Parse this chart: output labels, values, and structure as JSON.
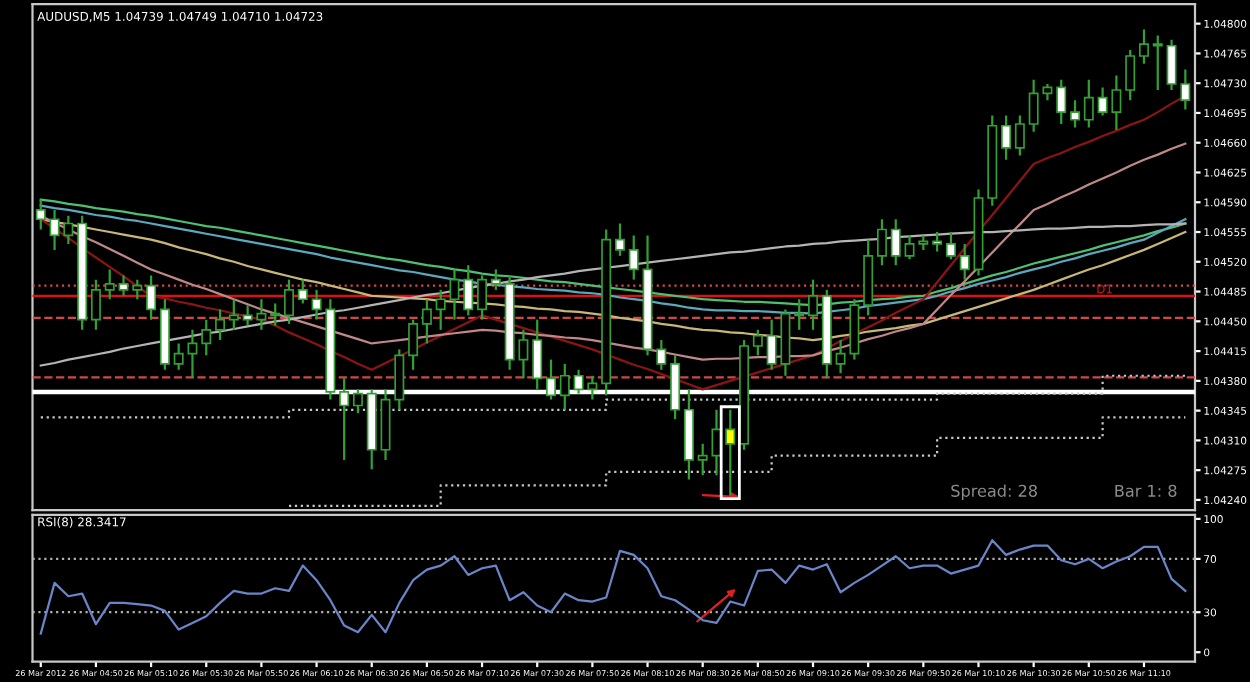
{
  "chart_data": [
    {
      "type": "candlestick",
      "title": "AUDUSD,M5 1.04739 1.04749 1.04710 1.04723",
      "categories": [
        null,
        null,
        null,
        null,
        null,
        null,
        null,
        null,
        null,
        null,
        null,
        null,
        null,
        null,
        null,
        null,
        null,
        null,
        null,
        null,
        null,
        null,
        null,
        null,
        null,
        null,
        null,
        null,
        null,
        null,
        null,
        null,
        null,
        null,
        null,
        null,
        null,
        null,
        null,
        null,
        null,
        null,
        null,
        null,
        null,
        null,
        null,
        null,
        null,
        null,
        null,
        null,
        null,
        null,
        null,
        null,
        null,
        null,
        null,
        null,
        null,
        null,
        null,
        null,
        null,
        null,
        null,
        null,
        null,
        null,
        null,
        null,
        null,
        null,
        null,
        null,
        null,
        null,
        null,
        null,
        null,
        null,
        null,
        null
      ],
      "ohlc": [
        [
          1.04581,
          1.04593,
          1.04558,
          1.0457
        ],
        [
          1.0457,
          1.04581,
          1.04534,
          1.04551
        ],
        [
          1.04551,
          1.04574,
          1.04541,
          1.04565
        ],
        [
          1.04565,
          1.04574,
          1.0444,
          1.04452
        ],
        [
          1.04452,
          1.04499,
          1.0444,
          1.04487
        ],
        [
          1.04487,
          1.04511,
          1.04476,
          1.04494
        ],
        [
          1.04494,
          1.04504,
          1.0448,
          1.04487
        ],
        [
          1.04487,
          1.04499,
          1.04476,
          1.04492
        ],
        [
          1.04492,
          1.04504,
          1.04452,
          1.04464
        ],
        [
          1.04464,
          1.04476,
          1.04393,
          1.044
        ],
        [
          1.044,
          1.04424,
          1.04393,
          1.04412
        ],
        [
          1.04412,
          1.0444,
          1.04383,
          1.04424
        ],
        [
          1.04424,
          1.04452,
          1.0441,
          1.0444
        ],
        [
          1.0444,
          1.04464,
          1.04428,
          1.04452
        ],
        [
          1.04452,
          1.04476,
          1.0444,
          1.04457
        ],
        [
          1.04457,
          1.04469,
          1.04445,
          1.04452
        ],
        [
          1.04452,
          1.04476,
          1.0444,
          1.04459
        ],
        [
          1.04459,
          1.04471,
          1.04445,
          1.04457
        ],
        [
          1.04457,
          1.04499,
          1.04447,
          1.04487
        ],
        [
          1.04487,
          1.04499,
          1.04471,
          1.04476
        ],
        [
          1.04476,
          1.04487,
          1.04452,
          1.04464
        ],
        [
          1.04464,
          1.04476,
          1.04358,
          1.04367
        ],
        [
          1.04367,
          1.04383,
          1.04287,
          1.04351
        ],
        [
          1.04351,
          1.0437,
          1.04342,
          1.04365
        ],
        [
          1.04365,
          1.0437,
          1.04276,
          1.04299
        ],
        [
          1.04299,
          1.0437,
          1.04287,
          1.04358
        ],
        [
          1.04358,
          1.04417,
          1.04346,
          1.0441
        ],
        [
          1.0441,
          1.04452,
          1.04393,
          1.04447
        ],
        [
          1.04447,
          1.04476,
          1.04424,
          1.04464
        ],
        [
          1.04464,
          1.04487,
          1.0444,
          1.04476
        ],
        [
          1.04476,
          1.04511,
          1.04452,
          1.04499
        ],
        [
          1.04499,
          1.04516,
          1.04457,
          1.04464
        ],
        [
          1.04464,
          1.04504,
          1.04452,
          1.04499
        ],
        [
          1.04499,
          1.04511,
          1.04487,
          1.04494
        ],
        [
          1.04494,
          1.04504,
          1.04393,
          1.04405
        ],
        [
          1.04405,
          1.0444,
          1.04383,
          1.04428
        ],
        [
          1.04428,
          1.04452,
          1.0437,
          1.04383
        ],
        [
          1.04383,
          1.04405,
          1.04358,
          1.04363
        ],
        [
          1.04363,
          1.044,
          1.04346,
          1.04386
        ],
        [
          1.04386,
          1.04393,
          1.04365,
          1.0437
        ],
        [
          1.0437,
          1.04386,
          1.04358,
          1.04377
        ],
        [
          1.04377,
          1.04558,
          1.04363,
          1.04546
        ],
        [
          1.04546,
          1.04565,
          1.04527,
          1.04534
        ],
        [
          1.04534,
          1.04551,
          1.04499,
          1.04511
        ],
        [
          1.04511,
          1.04551,
          1.0441,
          1.04417
        ],
        [
          1.04417,
          1.04428,
          1.04393,
          1.044
        ],
        [
          1.044,
          1.0441,
          1.04335,
          1.04346
        ],
        [
          1.04346,
          1.0437,
          1.04264,
          1.04287
        ],
        [
          1.04287,
          1.04306,
          1.04269,
          1.04292
        ],
        [
          1.04292,
          1.04346,
          1.04269,
          1.04323
        ],
        [
          1.04323,
          1.04346,
          1.04245,
          1.04306
        ],
        [
          1.04306,
          1.04428,
          1.04299,
          1.04421
        ],
        [
          1.04421,
          1.0444,
          1.0441,
          1.04433
        ],
        [
          1.04433,
          1.04452,
          1.04393,
          1.044
        ],
        [
          1.044,
          1.04464,
          1.04386,
          1.04459
        ],
        [
          1.04459,
          1.04476,
          1.0444,
          1.04457
        ],
        [
          1.04457,
          1.04499,
          1.0444,
          1.0448
        ],
        [
          1.0448,
          1.04487,
          1.04383,
          1.044
        ],
        [
          1.044,
          1.04428,
          1.04389,
          1.04412
        ],
        [
          1.04412,
          1.04476,
          1.04405,
          1.04469
        ],
        [
          1.04469,
          1.04546,
          1.04457,
          1.04527
        ],
        [
          1.04527,
          1.0457,
          1.04516,
          1.04558
        ],
        [
          1.04558,
          1.0457,
          1.04516,
          1.04527
        ],
        [
          1.04527,
          1.04551,
          1.04523,
          1.04541
        ],
        [
          1.04541,
          1.04551,
          1.04534,
          1.04544
        ],
        [
          1.04544,
          1.04555,
          1.04532,
          1.04541
        ],
        [
          1.04541,
          1.04555,
          1.04523,
          1.04527
        ],
        [
          1.04527,
          1.04541,
          1.04499,
          1.04511
        ],
        [
          1.04511,
          1.04605,
          1.04504,
          1.04595
        ],
        [
          1.04595,
          1.04692,
          1.04586,
          1.0468
        ],
        [
          1.0468,
          1.04692,
          1.0464,
          1.04654
        ],
        [
          1.04654,
          1.04692,
          1.04645,
          1.04682
        ],
        [
          1.04682,
          1.04734,
          1.04673,
          1.04718
        ],
        [
          1.04718,
          1.04729,
          1.0471,
          1.04725
        ],
        [
          1.04725,
          1.04734,
          1.04682,
          1.04696
        ],
        [
          1.04696,
          1.0471,
          1.04678,
          1.04687
        ],
        [
          1.04687,
          1.04734,
          1.04678,
          1.04713
        ],
        [
          1.04713,
          1.04725,
          1.04692,
          1.04696
        ],
        [
          1.04696,
          1.04739,
          1.04675,
          1.04722
        ],
        [
          1.04722,
          1.04769,
          1.0471,
          1.04762
        ],
        [
          1.04762,
          1.04793,
          1.04753,
          1.04776
        ],
        [
          1.04776,
          1.04786,
          1.04722,
          1.04774
        ],
        [
          1.04774,
          1.04781,
          1.04722,
          1.04729
        ],
        [
          1.04729,
          1.04746,
          1.04699,
          1.0471
        ]
      ],
      "colors": [
        "#ffffff",
        "#ffffff",
        "#000000",
        "#ffffff",
        "#000000",
        "#000000",
        "#ffffff",
        "#000000",
        "#ffffff",
        "#ffffff",
        "#000000",
        "#000000",
        "#000000",
        "#000000",
        "#000000",
        "#ffffff",
        "#000000",
        "#ffffff",
        "#000000",
        "#ffffff",
        "#ffffff",
        "#ffffff",
        "#ffffff",
        "#000000",
        "#ffffff",
        "#000000",
        "#000000",
        "#000000",
        "#000000",
        "#000000",
        "#000000",
        "#ffffff",
        "#000000",
        "#ffffff",
        "#ffffff",
        "#000000",
        "#ffffff",
        "#ffffff",
        "#000000",
        "#ffffff",
        "#000000",
        "#000000",
        "#ffffff",
        "#ffffff",
        "#ffffff",
        "#ffffff",
        "#ffffff",
        "#ffffff",
        "#000000",
        "#000000",
        "#ffff00",
        "#000000",
        "#000000",
        "#ffffff",
        "#000000",
        "#ffffff",
        "#000000",
        "#ffffff",
        "#000000",
        "#000000",
        "#000000",
        "#000000",
        "#ffffff",
        "#000000",
        "#000000",
        "#ffffff",
        "#ffffff",
        "#ffffff",
        "#000000",
        "#000000",
        "#ffffff",
        "#000000",
        "#000000",
        "#000000",
        "#ffffff",
        "#ffffff",
        "#000000",
        "#ffffff",
        "#000000",
        "#000000",
        "#000000",
        "#ffffff",
        "#ffffff",
        "#ffffff"
      ],
      "color": "#33a033",
      "series": [
        {
          "type": "line",
          "color": "#4fbf72",
          "values": [
            1.04593,
            1.04591,
            1.04588,
            1.04586,
            1.04583,
            1.04581,
            1.04579,
            1.04576,
            1.04574,
            1.04571,
            1.04568,
            1.04565,
            1.04562,
            1.0456,
            1.04557,
            1.04554,
            1.04551,
            1.04548,
            1.04545,
            1.04542,
            1.04539,
            1.04536,
            1.04533,
            1.0453,
            1.04527,
            1.04524,
            1.04522,
            1.04519,
            1.04516,
            1.04514,
            1.04511,
            1.04509,
            1.04506,
            1.04504,
            1.04503,
            1.04501,
            1.04499,
            1.04497,
            1.04496,
            1.04494,
            1.04492,
            1.0449,
            1.04488,
            1.04486,
            1.04484,
            1.04482,
            1.0448,
            1.04478,
            1.04476,
            1.04475,
            1.04474,
            1.04473,
            1.04473,
            1.04472,
            1.04471,
            1.0447,
            1.04469,
            1.0447,
            1.04472,
            1.04473,
            1.04475,
            1.04476,
            1.04477,
            1.04479,
            1.0448,
            1.04485,
            1.04489,
            1.04494,
            1.04499,
            1.04504,
            1.04508,
            1.04513,
            1.04518,
            1.04522,
            1.04526,
            1.0453,
            1.04534,
            1.04539,
            1.04543,
            1.04547,
            1.04551,
            1.04556,
            1.0456,
            1.04565
          ]
        },
        {
          "type": "line",
          "color": "#5aa9bf",
          "values": [
            1.04586,
            1.04583,
            1.04581,
            1.04578,
            1.04575,
            1.04573,
            1.0457,
            1.04568,
            1.04565,
            1.04562,
            1.04559,
            1.04556,
            1.04553,
            1.0455,
            1.04547,
            1.04544,
            1.04541,
            1.04538,
            1.04535,
            1.04532,
            1.04529,
            1.04525,
            1.04522,
            1.04519,
            1.04516,
            1.04513,
            1.0451,
            1.04508,
            1.04505,
            1.04502,
            1.04499,
            1.04497,
            1.04494,
            1.04493,
            1.04491,
            1.0449,
            1.04488,
            1.04487,
            1.04486,
            1.04484,
            1.04483,
            1.04481,
            1.04478,
            1.04476,
            1.04474,
            1.04471,
            1.04469,
            1.04466,
            1.04464,
            1.04463,
            1.04463,
            1.04462,
            1.04462,
            1.04461,
            1.0446,
            1.0446,
            1.04459,
            1.04461,
            1.04463,
            1.04465,
            1.04468,
            1.0447,
            1.04472,
            1.04474,
            1.04476,
            1.0448,
            1.04485,
            1.04489,
            1.04494,
            1.04498,
            1.04502,
            1.04507,
            1.04511,
            1.04515,
            1.0452,
            1.04524,
            1.04529,
            1.04533,
            1.04537,
            1.04542,
            1.04546,
            1.04554,
            1.04562,
            1.0457
          ]
        },
        {
          "type": "line",
          "color": "#c8b878",
          "values": [
            1.0457,
            1.04567,
            1.04564,
            1.04561,
            1.04558,
            1.04555,
            1.04552,
            1.04549,
            1.04546,
            1.04542,
            1.04537,
            1.04533,
            1.04529,
            1.04524,
            1.0452,
            1.04515,
            1.04511,
            1.04507,
            1.04503,
            1.04499,
            1.04496,
            1.04492,
            1.04488,
            1.04484,
            1.0448,
            1.04479,
            1.04478,
            1.04477,
            1.04476,
            1.04474,
            1.04473,
            1.04472,
            1.04471,
            1.0447,
            1.04468,
            1.04467,
            1.04465,
            1.04464,
            1.04462,
            1.04461,
            1.04459,
            1.04457,
            1.04454,
            1.04452,
            1.0445,
            1.04447,
            1.04445,
            1.04442,
            1.0444,
            1.04439,
            1.04437,
            1.04436,
            1.04434,
            1.04433,
            1.04431,
            1.0443,
            1.04428,
            1.0443,
            1.04433,
            1.04435,
            1.04438,
            1.0444,
            1.04442,
            1.04445,
            1.04447,
            1.04452,
            1.04457,
            1.04462,
            1.04467,
            1.04472,
            1.04477,
            1.04482,
            1.04487,
            1.04493,
            1.04499,
            1.04505,
            1.04511,
            1.04516,
            1.04522,
            1.04528,
            1.04534,
            1.04541,
            1.04548,
            1.04555
          ]
        },
        {
          "type": "line",
          "color": "#8b1414",
          "values": [
            1.0457,
            1.04559,
            1.04548,
            1.04536,
            1.04525,
            1.04514,
            1.04503,
            1.04491,
            1.0448,
            1.04477,
            1.04473,
            1.0447,
            1.04466,
            1.04463,
            1.04459,
            1.04456,
            1.04452,
            1.04445,
            1.04437,
            1.0443,
            1.04423,
            1.04415,
            1.04408,
            1.044,
            1.04393,
            1.04401,
            1.04409,
            1.04417,
            1.04425,
            1.04433,
            1.04441,
            1.04449,
            1.04457,
            1.04452,
            1.04447,
            1.04442,
            1.04437,
            1.04432,
            1.04427,
            1.04422,
            1.04417,
            1.04411,
            1.04405,
            1.04399,
            1.04394,
            1.04388,
            1.04382,
            1.04376,
            1.0437,
            1.04375,
            1.0438,
            1.04385,
            1.0439,
            1.04395,
            1.044,
            1.04405,
            1.0441,
            1.04418,
            1.04427,
            1.04435,
            1.04443,
            1.04451,
            1.0446,
            1.04468,
            1.04476,
            1.04496,
            1.04516,
            1.04536,
            1.04556,
            1.04575,
            1.04595,
            1.04615,
            1.04635,
            1.04642,
            1.04648,
            1.04655,
            1.04661,
            1.04668,
            1.04674,
            1.04681,
            1.04687,
            1.04696,
            1.04706,
            1.04715
          ]
        },
        {
          "type": "line",
          "color": "#c08888",
          "values": [
            1.04574,
            1.04566,
            1.04558,
            1.0455,
            1.04543,
            1.04535,
            1.04527,
            1.04519,
            1.04511,
            1.04505,
            1.04499,
            1.04493,
            1.04488,
            1.04482,
            1.04476,
            1.0447,
            1.04464,
            1.04459,
            1.04454,
            1.04449,
            1.04444,
            1.04439,
            1.04434,
            1.04429,
            1.04424,
            1.04426,
            1.04428,
            1.0443,
            1.04432,
            1.04434,
            1.04436,
            1.04438,
            1.0444,
            1.04439,
            1.04437,
            1.04436,
            1.04434,
            1.04433,
            1.04431,
            1.0443,
            1.04428,
            1.04425,
            1.04422,
            1.04419,
            1.04417,
            1.04414,
            1.04411,
            1.04408,
            1.04405,
            1.04406,
            1.04406,
            1.04407,
            1.04408,
            1.04408,
            1.04409,
            1.04409,
            1.0441,
            1.04415,
            1.04419,
            1.04424,
            1.04429,
            1.04433,
            1.04438,
            1.04442,
            1.04447,
            1.04464,
            1.04481,
            1.04497,
            1.04514,
            1.04531,
            1.04548,
            1.04564,
            1.04581,
            1.04588,
            1.04596,
            1.04603,
            1.04611,
            1.04618,
            1.04625,
            1.04633,
            1.0464,
            1.04646,
            1.04653,
            1.04659
          ]
        },
        {
          "type": "line",
          "color": "#b4b4b4",
          "values": [
            1.04398,
            1.04401,
            1.04405,
            1.04408,
            1.04411,
            1.04414,
            1.04418,
            1.04421,
            1.04424,
            1.04427,
            1.0443,
            1.04433,
            1.04436,
            1.04438,
            1.04441,
            1.04444,
            1.04447,
            1.0445,
            1.04452,
            1.04455,
            1.04458,
            1.04461,
            1.04463,
            1.04466,
            1.04469,
            1.04472,
            1.04475,
            1.04478,
            1.04481,
            1.04483,
            1.04486,
            1.04489,
            1.04492,
            1.04494,
            1.04497,
            1.04499,
            1.04502,
            1.04504,
            1.04506,
            1.04509,
            1.04511,
            1.04513,
            1.04515,
            1.04517,
            1.04519,
            1.04521,
            1.04523,
            1.04525,
            1.04527,
            1.04529,
            1.04531,
            1.04532,
            1.04534,
            1.04536,
            1.04538,
            1.04539,
            1.04541,
            1.04542,
            1.04544,
            1.04545,
            1.04546,
            1.04547,
            1.04549,
            1.0455,
            1.04551,
            1.04552,
            1.04553,
            1.04554,
            1.04555,
            1.04555,
            1.04556,
            1.04557,
            1.04558,
            1.04559,
            1.04559,
            1.0456,
            1.04561,
            1.04561,
            1.04562,
            1.04562,
            1.04563,
            1.04564,
            1.04564,
            1.04565
          ]
        },
        {
          "type": "step",
          "color": "#c8c8c8",
          "line_style": "dotted",
          "values": [
            1.04337,
            1.04337,
            1.04337,
            1.04337,
            1.04337,
            1.04337,
            1.04337,
            1.04337,
            1.04337,
            1.04337,
            1.04337,
            1.04337,
            1.04337,
            1.04337,
            1.04337,
            1.04337,
            1.04337,
            1.04337,
            1.04346,
            1.04346,
            1.04346,
            1.04346,
            1.04346,
            1.04346,
            1.04346,
            1.04346,
            1.04346,
            1.04346,
            1.04346,
            1.04346,
            1.04346,
            1.04346,
            1.04346,
            1.04346,
            1.04346,
            1.04346,
            1.04346,
            1.04346,
            1.04346,
            1.04346,
            1.04346,
            1.04358,
            1.04358,
            1.04358,
            1.04358,
            1.04358,
            1.04358,
            1.04358,
            1.04358,
            1.04358,
            1.04358,
            1.04358,
            1.04358,
            1.04358,
            1.04358,
            1.04358,
            1.04358,
            1.04358,
            1.04358,
            1.04358,
            1.04358,
            1.04358,
            1.04358,
            1.04358,
            1.04358,
            1.04365,
            1.04365,
            1.04365,
            1.04365,
            1.04365,
            1.04365,
            1.04365,
            1.04365,
            1.04365,
            1.04365,
            1.04365,
            1.04365,
            1.04386,
            1.04386,
            1.04386,
            1.04386,
            1.04386,
            1.04386,
            1.04386
          ]
        },
        {
          "type": "step",
          "color": "#c8c8c8",
          "line_style": "dotted",
          "values": [
            null,
            null,
            null,
            null,
            null,
            null,
            null,
            null,
            null,
            null,
            null,
            null,
            null,
            null,
            null,
            null,
            null,
            null,
            1.04233,
            1.04233,
            1.04233,
            1.04233,
            1.04233,
            1.04233,
            1.04233,
            1.04233,
            1.04233,
            1.04233,
            1.04233,
            1.04257,
            1.04257,
            1.04257,
            1.04257,
            1.04257,
            1.04257,
            1.04257,
            1.04257,
            1.04257,
            1.04257,
            1.04257,
            1.04257,
            1.04273,
            1.04273,
            1.04273,
            1.04273,
            1.04273,
            1.04273,
            1.04273,
            1.04273,
            1.04273,
            1.04273,
            1.04273,
            1.04273,
            1.04292,
            1.04292,
            1.04292,
            1.04292,
            1.04292,
            1.04292,
            1.04292,
            1.04292,
            1.04292,
            1.04292,
            1.04292,
            1.04292,
            1.04313,
            1.04313,
            1.04313,
            1.04313,
            1.04313,
            1.04313,
            1.04313,
            1.04313,
            1.04313,
            1.04313,
            1.04313,
            1.04313,
            1.04337,
            1.04337,
            1.04337,
            1.04337,
            1.04337,
            1.04337,
            1.04337
          ]
        }
      ],
      "ylim": [
        1.04228,
        1.04823
      ],
      "yticks": [
        {
          "value": 1.048,
          "label": "1.04800"
        },
        {
          "value": 1.04765,
          "label": "1.04765"
        },
        {
          "value": 1.0473,
          "label": "1.04730"
        },
        {
          "value": 1.04695,
          "label": "1.04695"
        },
        {
          "value": 1.0466,
          "label": "1.04660"
        },
        {
          "value": 1.04625,
          "label": "1.04625"
        },
        {
          "value": 1.0459,
          "label": "1.04590"
        },
        {
          "value": 1.04555,
          "label": "1.04555"
        },
        {
          "value": 1.0452,
          "label": "1.04520"
        },
        {
          "value": 1.04485,
          "label": "1.04485"
        },
        {
          "value": 1.0445,
          "label": "1.04450"
        },
        {
          "value": 1.04415,
          "label": "1.04415"
        },
        {
          "value": 1.0438,
          "label": "1.04380"
        },
        {
          "value": 1.04345,
          "label": "1.04345"
        },
        {
          "value": 1.0431,
          "label": "1.04310"
        },
        {
          "value": 1.04275,
          "label": "1.04275"
        },
        {
          "value": 1.0424,
          "label": "1.04240"
        }
      ],
      "ref_lines": [
        {
          "axis": "y",
          "value": 1.04367,
          "color": "#ffffff",
          "line_style": "solid"
        },
        {
          "axis": "y",
          "value": 1.0448,
          "color": "#e01010",
          "line_style": "solid",
          "label": "D1"
        },
        {
          "axis": "y",
          "value": 1.04492,
          "color": "#d04848",
          "line_style": "dotted"
        },
        {
          "axis": "y",
          "value": 1.04454,
          "color": "#d04848",
          "line_style": "dashed"
        },
        {
          "axis": "y",
          "value": 1.04384,
          "color": "#d04848",
          "line_style": "dashed"
        }
      ],
      "annotations": [
        "Spread: 28",
        "Bar 1: 8"
      ],
      "tick_labels": "y"
    },
    {
      "type": "line",
      "title": "RSI(8) 28.3417",
      "categories": [
        "26 Mar 2012",
        null,
        null,
        null,
        "26 Mar 04:50",
        null,
        null,
        null,
        "26 Mar 05:10",
        null,
        null,
        null,
        "26 Mar 05:30",
        null,
        null,
        null,
        "26 Mar 05:50",
        null,
        null,
        null,
        "26 Mar 06:10",
        null,
        null,
        null,
        "26 Mar 06:30",
        null,
        null,
        null,
        "26 Mar 06:50",
        null,
        null,
        null,
        "26 Mar 07:10",
        null,
        null,
        null,
        "26 Mar 07:30",
        null,
        null,
        null,
        "26 Mar 07:50",
        null,
        null,
        null,
        "26 Mar 08:10",
        null,
        null,
        null,
        "26 Mar 08:30",
        null,
        null,
        null,
        "26 Mar 08:50",
        null,
        null,
        null,
        "26 Mar 09:10",
        null,
        null,
        null,
        "26 Mar 09:30",
        null,
        null,
        null,
        "26 Mar 09:50",
        null,
        null,
        null,
        "26 Mar 10:10",
        null,
        null,
        null,
        "26 Mar 10:30",
        null,
        null,
        null,
        "26 Mar 10:50",
        null,
        null,
        null,
        "26 Mar 11:10",
        null,
        null,
        null
      ],
      "series": [
        {
          "color": "#6a86c8",
          "values": [
            14,
            52,
            42,
            44,
            21,
            37,
            37,
            36,
            35,
            31,
            17,
            22,
            27,
            37,
            46,
            44,
            44,
            48,
            46,
            65,
            54,
            39,
            20,
            15,
            28,
            15,
            37,
            54,
            62,
            65,
            72,
            58,
            63,
            65,
            39,
            45,
            35,
            30,
            44,
            39,
            38,
            41,
            76,
            73,
            63,
            42,
            39,
            32,
            24,
            22,
            38,
            35,
            61,
            62,
            52,
            65,
            62,
            66,
            45,
            52,
            58,
            65,
            72,
            63,
            65,
            65,
            59,
            62,
            65,
            84,
            73,
            77,
            80,
            80,
            69,
            66,
            70,
            63,
            68,
            72,
            79,
            79,
            55,
            46
          ]
        }
      ],
      "ylim": [
        -7,
        103
      ],
      "yticks": [
        100,
        70,
        30,
        0
      ],
      "ref_lines": [
        {
          "axis": "y",
          "value": 70,
          "color": "#b0b0b0",
          "line_style": "dotted"
        },
        {
          "axis": "y",
          "value": 30,
          "color": "#b0b0b0",
          "line_style": "dotted"
        }
      ]
    }
  ]
}
